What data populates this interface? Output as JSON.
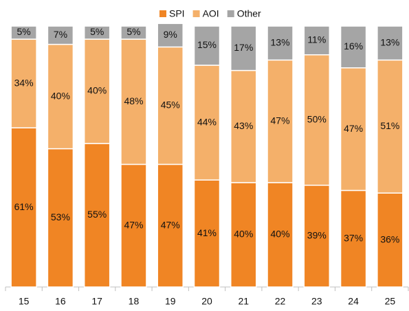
{
  "chart_data": {
    "type": "stacked_bar",
    "categories": [
      "15",
      "16",
      "17",
      "18",
      "19",
      "20",
      "21",
      "22",
      "23",
      "24",
      "25"
    ],
    "series": [
      {
        "name": "SPI",
        "color": "#f08524",
        "values": [
          61,
          53,
          55,
          47,
          47,
          41,
          40,
          40,
          39,
          37,
          36
        ],
        "value_labels": [
          "61%",
          "53%",
          "55%",
          "47%",
          "47%",
          "41%",
          "40%",
          "40%",
          "39%",
          "37%",
          "36%"
        ]
      },
      {
        "name": "AOI",
        "color": "#f4b06a",
        "values": [
          34,
          40,
          40,
          48,
          45,
          44,
          43,
          47,
          50,
          47,
          51
        ],
        "value_labels": [
          "34%",
          "40%",
          "40%",
          "48%",
          "45%",
          "44%",
          "43%",
          "47%",
          "50%",
          "47%",
          "51%"
        ]
      },
      {
        "name": "Other",
        "color": "#a5a5a5",
        "values": [
          5,
          7,
          5,
          5,
          9,
          15,
          17,
          13,
          11,
          16,
          13
        ],
        "value_labels": [
          "5%",
          "7%",
          "5%",
          "5%",
          "9%",
          "15%",
          "17%",
          "13%",
          "11%",
          "16%",
          "13%"
        ]
      }
    ],
    "ylim": [
      0,
      100
    ],
    "legend": "top"
  }
}
